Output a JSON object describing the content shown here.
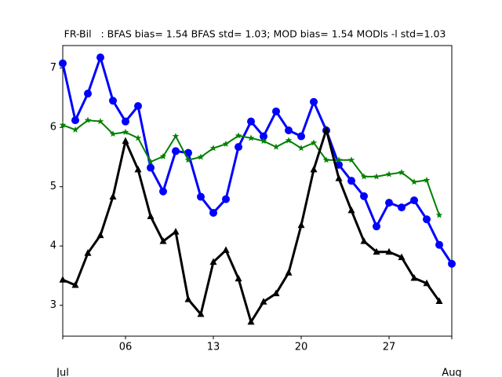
{
  "chart_data": {
    "type": "line",
    "title": "FR-Bil   : BFAS bias= 1.54 BFAS std= 1.03; MOD bias= 1.54 MODls -l std=1.03",
    "x": [
      "07-01",
      "07-02",
      "07-03",
      "07-04",
      "07-05",
      "07-06",
      "07-07",
      "07-08",
      "07-09",
      "07-10",
      "07-11",
      "07-12",
      "07-13",
      "07-14",
      "07-15",
      "07-16",
      "07-17",
      "07-18",
      "07-19",
      "07-20",
      "07-21",
      "07-22",
      "07-23",
      "07-24",
      "07-25",
      "07-26",
      "07-27",
      "07-28",
      "07-29",
      "07-30",
      "07-31",
      "08-01"
    ],
    "series": [
      {
        "color": "#0000ff",
        "marker": "circle",
        "values": [
          7.08,
          6.12,
          6.57,
          7.18,
          6.45,
          6.1,
          6.36,
          5.32,
          4.92,
          5.6,
          5.57,
          4.83,
          4.56,
          4.79,
          5.67,
          6.1,
          5.85,
          6.27,
          5.95,
          5.85,
          6.43,
          5.95,
          5.37,
          5.1,
          4.84,
          4.33,
          4.73,
          4.65,
          4.77,
          4.45,
          4.02,
          3.7
        ]
      },
      {
        "color": "#008000",
        "marker": "star",
        "values": [
          6.04,
          5.96,
          6.12,
          6.1,
          5.89,
          5.92,
          5.82,
          5.42,
          5.51,
          5.85,
          5.45,
          5.5,
          5.65,
          5.72,
          5.86,
          5.82,
          5.77,
          5.67,
          5.78,
          5.65,
          5.74,
          5.45,
          5.45,
          5.45,
          5.17,
          5.17,
          5.21,
          5.24,
          5.08,
          5.11,
          4.52,
          null
        ]
      },
      {
        "color": "#000000",
        "marker": "triangle",
        "values": [
          3.43,
          3.34,
          3.88,
          4.18,
          4.83,
          5.77,
          5.29,
          4.5,
          4.08,
          4.24,
          3.1,
          2.85,
          3.73,
          3.93,
          3.45,
          2.72,
          3.06,
          3.2,
          3.55,
          4.35,
          5.29,
          5.96,
          5.14,
          4.6,
          4.08,
          3.9,
          3.9,
          3.81,
          3.46,
          3.37,
          3.07,
          null
        ]
      }
    ],
    "xlim": [
      "07-01",
      "08-01"
    ],
    "xticks": [
      {
        "value": "07-06",
        "label": "06"
      },
      {
        "value": "07-13",
        "label": "13"
      },
      {
        "value": "07-20",
        "label": "20"
      },
      {
        "value": "07-27",
        "label": "27"
      }
    ],
    "xticks_month": [
      {
        "value": "07-01",
        "label": "Jul"
      },
      {
        "value": "08-01",
        "label": "Aug"
      }
    ],
    "ylim": [
      2.48,
      7.38
    ],
    "yticks": [
      3,
      4,
      5,
      6,
      7
    ]
  }
}
